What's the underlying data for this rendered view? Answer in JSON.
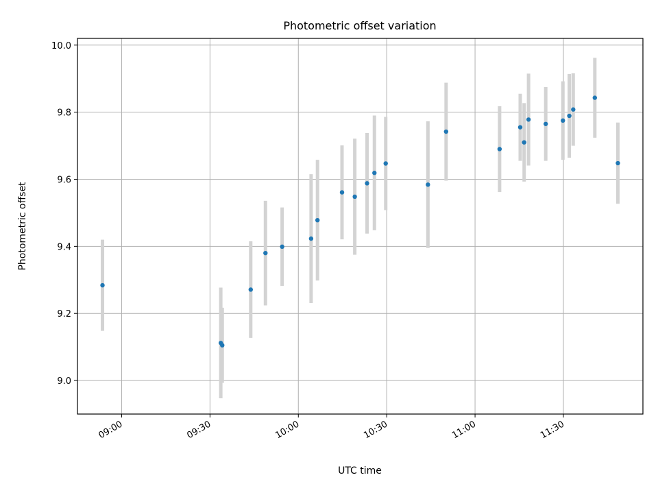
{
  "chart_data": {
    "type": "scatter",
    "title": "Photometric offset variation",
    "xlabel": "UTC time",
    "ylabel": "Photometric offset",
    "xlim": [
      "08:45",
      "11:57"
    ],
    "ylim": [
      8.9,
      10.02
    ],
    "x_ticks": [
      "09:00",
      "09:30",
      "10:00",
      "10:30",
      "11:00",
      "11:30"
    ],
    "y_ticks": [
      "9.0",
      "9.2",
      "9.4",
      "9.6",
      "9.8",
      "10.0"
    ],
    "grid": true,
    "colors": {
      "marker": "#1f77b4",
      "errorbar": "#d3d3d3",
      "grid": "#b0b0b0"
    },
    "series": [
      {
        "points": [
          {
            "x": "08:53:30",
            "y": 9.284,
            "yerr": 0.136
          },
          {
            "x": "09:33:40",
            "y": 9.112,
            "yerr": 0.165
          },
          {
            "x": "09:34:10",
            "y": 9.105,
            "yerr": 0.112
          },
          {
            "x": "09:43:50",
            "y": 9.271,
            "yerr": 0.144
          },
          {
            "x": "09:48:50",
            "y": 9.38,
            "yerr": 0.156
          },
          {
            "x": "09:54:30",
            "y": 9.399,
            "yerr": 0.117
          },
          {
            "x": "10:04:20",
            "y": 9.423,
            "yerr": 0.192
          },
          {
            "x": "10:06:30",
            "y": 9.478,
            "yerr": 0.18
          },
          {
            "x": "10:14:50",
            "y": 9.561,
            "yerr": 0.14
          },
          {
            "x": "10:19:10",
            "y": 9.548,
            "yerr": 0.173
          },
          {
            "x": "10:23:20",
            "y": 9.588,
            "yerr": 0.15
          },
          {
            "x": "10:25:50",
            "y": 9.619,
            "yerr": 0.171
          },
          {
            "x": "10:29:40",
            "y": 9.647,
            "yerr": 0.139
          },
          {
            "x": "10:44:00",
            "y": 9.584,
            "yerr": 0.189
          },
          {
            "x": "10:50:10",
            "y": 9.742,
            "yerr": 0.146
          },
          {
            "x": "11:08:20",
            "y": 9.69,
            "yerr": 0.128
          },
          {
            "x": "11:15:20",
            "y": 9.755,
            "yerr": 0.1
          },
          {
            "x": "11:16:40",
            "y": 9.71,
            "yerr": 0.117
          },
          {
            "x": "11:18:10",
            "y": 9.778,
            "yerr": 0.137
          },
          {
            "x": "11:24:00",
            "y": 9.765,
            "yerr": 0.11
          },
          {
            "x": "11:29:50",
            "y": 9.775,
            "yerr": 0.117
          },
          {
            "x": "11:32:00",
            "y": 9.789,
            "yerr": 0.125
          },
          {
            "x": "11:33:20",
            "y": 9.808,
            "yerr": 0.108
          },
          {
            "x": "11:40:40",
            "y": 9.843,
            "yerr": 0.119
          },
          {
            "x": "11:48:30",
            "y": 9.648,
            "yerr": 0.121
          }
        ]
      }
    ]
  }
}
